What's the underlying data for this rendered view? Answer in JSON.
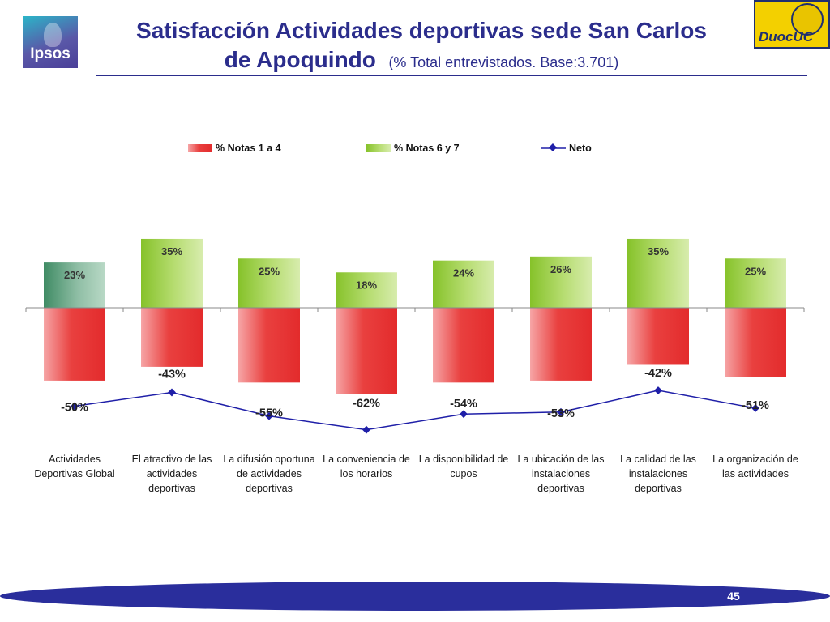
{
  "header": {
    "logo_left_text": "Ipsos",
    "logo_right_text": "DuocUC",
    "title_line1": "Satisfacción Actividades deportivas sede San Carlos",
    "title_line2_main": "de Apoquindo",
    "title_line2_sub": "(% Total entrevistados. Base:3.701)"
  },
  "chart_data": {
    "type": "bar",
    "stacking": "diverging",
    "categories": [
      "Actividades Deportivas Global",
      "El atractivo de las actividades deportivas",
      "La difusión oportuna de actividades deportivas",
      "La conveniencia de los horarios",
      "La disponibilidad de cupos",
      "La ubicación de las instalaciones deportivas",
      "La calidad de las instalaciones deportivas",
      "La organización de las actividades"
    ],
    "series": [
      {
        "name": "% Notas 1 a 4",
        "type": "bar",
        "values": [
          -37,
          -30,
          -38,
          -44,
          -38,
          -37,
          -29,
          -35
        ],
        "color": "#e8383a"
      },
      {
        "name": "% Notas 6 y 7",
        "type": "bar",
        "values": [
          23,
          35,
          25,
          18,
          24,
          26,
          35,
          25
        ],
        "color": "#9acd32",
        "data_labels": [
          "23%",
          "35%",
          "25%",
          "18%",
          "24%",
          "26%",
          "35%",
          "25%"
        ]
      },
      {
        "name": "Neto",
        "type": "line",
        "values": [
          -50,
          -43,
          -55,
          -62,
          -54,
          -53,
          -42,
          -51
        ],
        "color": "#1f1fa8",
        "data_labels": [
          "-50%",
          "-43%",
          "-55%",
          "-62%",
          "-54%",
          "-53%",
          "-42%",
          "-51%"
        ]
      }
    ],
    "ylim": [
      -90,
      40
    ],
    "legend": "top",
    "grid": false,
    "highlight_first_category": true
  },
  "footer": {
    "page_number": "45"
  }
}
